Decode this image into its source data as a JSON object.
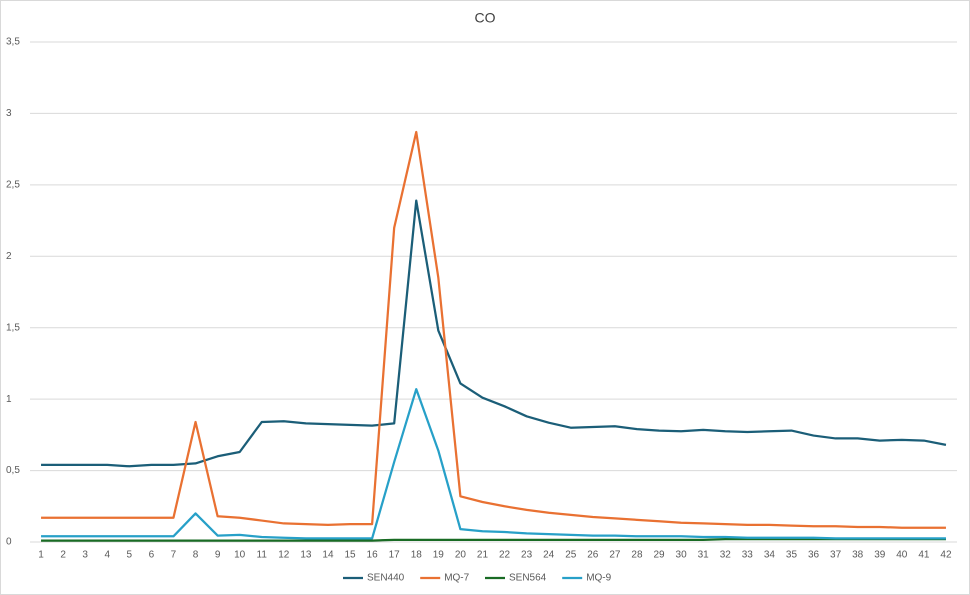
{
  "chart_data": {
    "type": "line",
    "title": "CO",
    "categories": [
      "1",
      "2",
      "3",
      "4",
      "5",
      "6",
      "7",
      "8",
      "9",
      "10",
      "11",
      "12",
      "13",
      "14",
      "15",
      "16",
      "17",
      "18",
      "19",
      "20",
      "21",
      "22",
      "23",
      "24",
      "25",
      "26",
      "27",
      "28",
      "29",
      "30",
      "31",
      "32",
      "33",
      "34",
      "35",
      "36",
      "37",
      "38",
      "39",
      "40",
      "41",
      "42"
    ],
    "series": [
      {
        "name": "SEN440",
        "color": "#1b5e78",
        "values": [
          0.54,
          0.54,
          0.54,
          0.54,
          0.53,
          0.54,
          0.54,
          0.55,
          0.6,
          0.63,
          0.84,
          0.845,
          0.83,
          0.825,
          0.82,
          0.815,
          0.83,
          2.39,
          1.48,
          1.11,
          1.01,
          0.95,
          0.88,
          0.835,
          0.8,
          0.805,
          0.81,
          0.79,
          0.78,
          0.775,
          0.785,
          0.775,
          0.77,
          0.775,
          0.78,
          0.745,
          0.725,
          0.725,
          0.71,
          0.715,
          0.71,
          0.68
        ]
      },
      {
        "name": "MQ-7",
        "color": "#e97132",
        "values": [
          0.17,
          0.17,
          0.17,
          0.17,
          0.17,
          0.17,
          0.17,
          0.84,
          0.18,
          0.17,
          0.15,
          0.13,
          0.125,
          0.12,
          0.125,
          0.125,
          2.2,
          2.87,
          1.85,
          0.32,
          0.28,
          0.25,
          0.225,
          0.205,
          0.19,
          0.175,
          0.165,
          0.155,
          0.145,
          0.135,
          0.13,
          0.125,
          0.12,
          0.12,
          0.115,
          0.11,
          0.11,
          0.105,
          0.105,
          0.1,
          0.1,
          0.1
        ]
      },
      {
        "name": "SEN564",
        "color": "#196b24",
        "values": [
          0.01,
          0.01,
          0.01,
          0.01,
          0.01,
          0.01,
          0.01,
          0.01,
          0.01,
          0.01,
          0.01,
          0.01,
          0.01,
          0.01,
          0.01,
          0.01,
          0.015,
          0.015,
          0.015,
          0.015,
          0.015,
          0.015,
          0.015,
          0.015,
          0.015,
          0.015,
          0.015,
          0.015,
          0.015,
          0.015,
          0.015,
          0.02,
          0.02,
          0.02,
          0.02,
          0.02,
          0.02,
          0.02,
          0.02,
          0.02,
          0.02,
          0.02
        ]
      },
      {
        "name": "MQ-9",
        "color": "#27a0c8",
        "values": [
          0.04,
          0.04,
          0.04,
          0.04,
          0.04,
          0.04,
          0.04,
          0.2,
          0.045,
          0.05,
          0.035,
          0.03,
          0.025,
          0.025,
          0.025,
          0.025,
          0.56,
          1.07,
          0.64,
          0.09,
          0.075,
          0.07,
          0.06,
          0.055,
          0.05,
          0.045,
          0.045,
          0.04,
          0.04,
          0.04,
          0.035,
          0.035,
          0.03,
          0.03,
          0.03,
          0.03,
          0.025,
          0.025,
          0.025,
          0.025,
          0.025,
          0.025
        ]
      }
    ],
    "ylim": [
      0,
      3.5
    ],
    "yticks": [
      0,
      {
        "value": 0.5,
        "label": "0,5"
      },
      1,
      {
        "value": 1.5,
        "label": "1,5"
      },
      2,
      {
        "value": 2.5,
        "label": "2,5"
      },
      3,
      {
        "value": 3.5,
        "label": "3,5"
      }
    ],
    "grid": true,
    "legend": "bottom"
  }
}
